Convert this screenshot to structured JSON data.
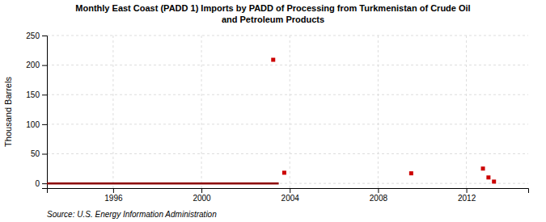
{
  "chart_data": {
    "type": "scatter",
    "title": "Monthly East Coast (PADD 1) Imports by PADD of Processing from Turkmenistan of Crude Oil\nand Petroleum Products",
    "ylabel": "Thousand Barrels",
    "source": "Source: U.S. Energy Information Administration",
    "xlim": [
      1993.0,
      2014.8
    ],
    "ylim": [
      -8,
      250
    ],
    "xticks": [
      1996,
      2000,
      2004,
      2008,
      2012
    ],
    "yticks": [
      0,
      50,
      100,
      150,
      200,
      250
    ],
    "grid": true,
    "series": [
      {
        "type": "line",
        "color": "#8b0000",
        "line_style": "solid",
        "x": [
          1993.0,
          2003.5
        ],
        "values": [
          0,
          0
        ]
      },
      {
        "type": "scatter",
        "color": "#cc0000",
        "marker": "square",
        "x": [
          2003.25,
          2003.75,
          2009.5,
          2012.75,
          2013.0,
          2013.25
        ],
        "values": [
          209,
          18,
          17,
          25,
          10,
          3
        ]
      }
    ]
  }
}
